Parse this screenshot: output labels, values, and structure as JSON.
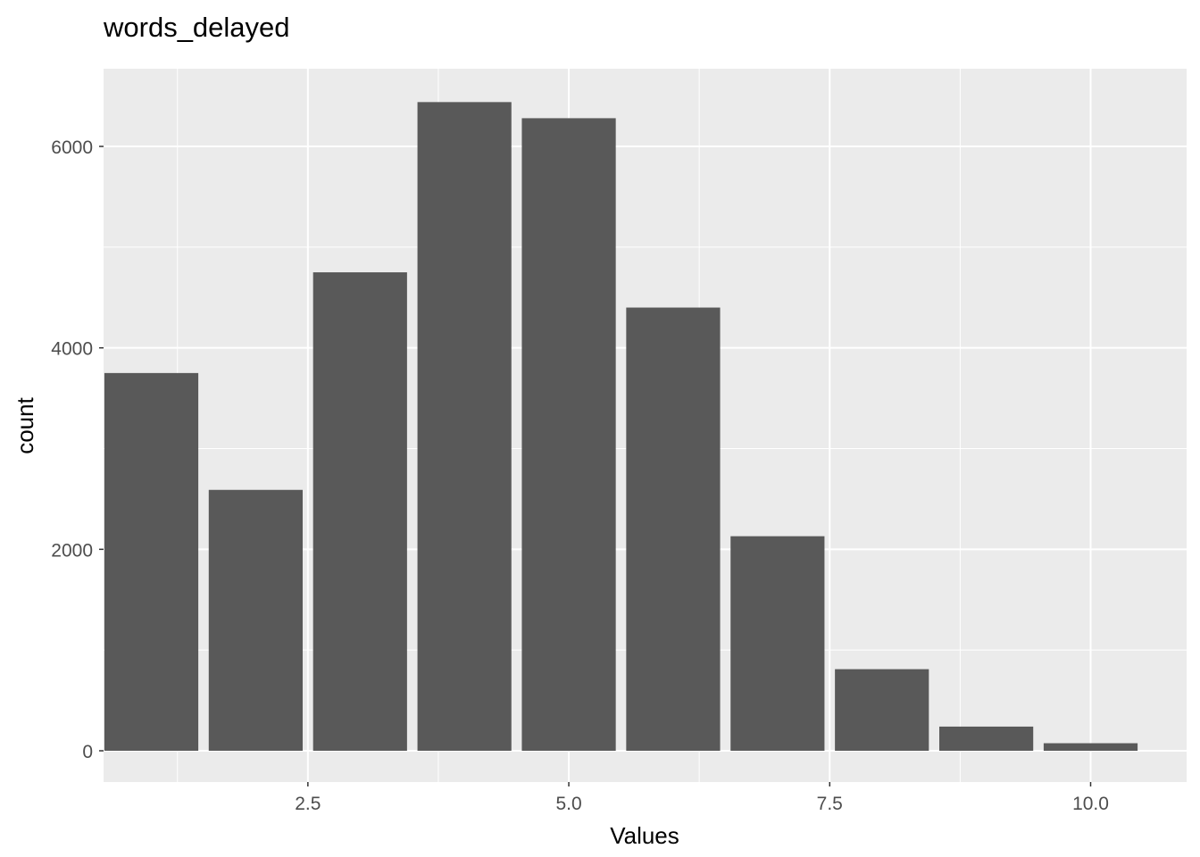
{
  "chart_data": {
    "type": "bar",
    "title": "words_delayed",
    "xlabel": "Values",
    "ylabel": "count",
    "x": [
      1,
      2,
      3,
      4,
      5,
      6,
      7,
      8,
      9,
      10
    ],
    "values": [
      3750,
      2590,
      4750,
      6440,
      6280,
      4400,
      2130,
      810,
      240,
      75
    ],
    "xlim": [
      0.5,
      10.5
    ],
    "ylim": [
      0,
      6440
    ],
    "x_ticks": [
      2.5,
      5.0,
      7.5,
      10.0
    ],
    "x_tick_labels": [
      "2.5",
      "5.0",
      "7.5",
      "10.0"
    ],
    "y_ticks": [
      0,
      2000,
      4000,
      6000
    ],
    "y_tick_labels": [
      "0",
      "2000",
      "4000",
      "6000"
    ],
    "bar_width": 0.9,
    "grid": true,
    "colors": {
      "panel_background": "#ebebeb",
      "grid_major": "#ffffff",
      "bar_fill": "#595959",
      "tick_text": "#4d4d4d",
      "tick_mark": "#333333",
      "title_text": "#000000"
    }
  }
}
